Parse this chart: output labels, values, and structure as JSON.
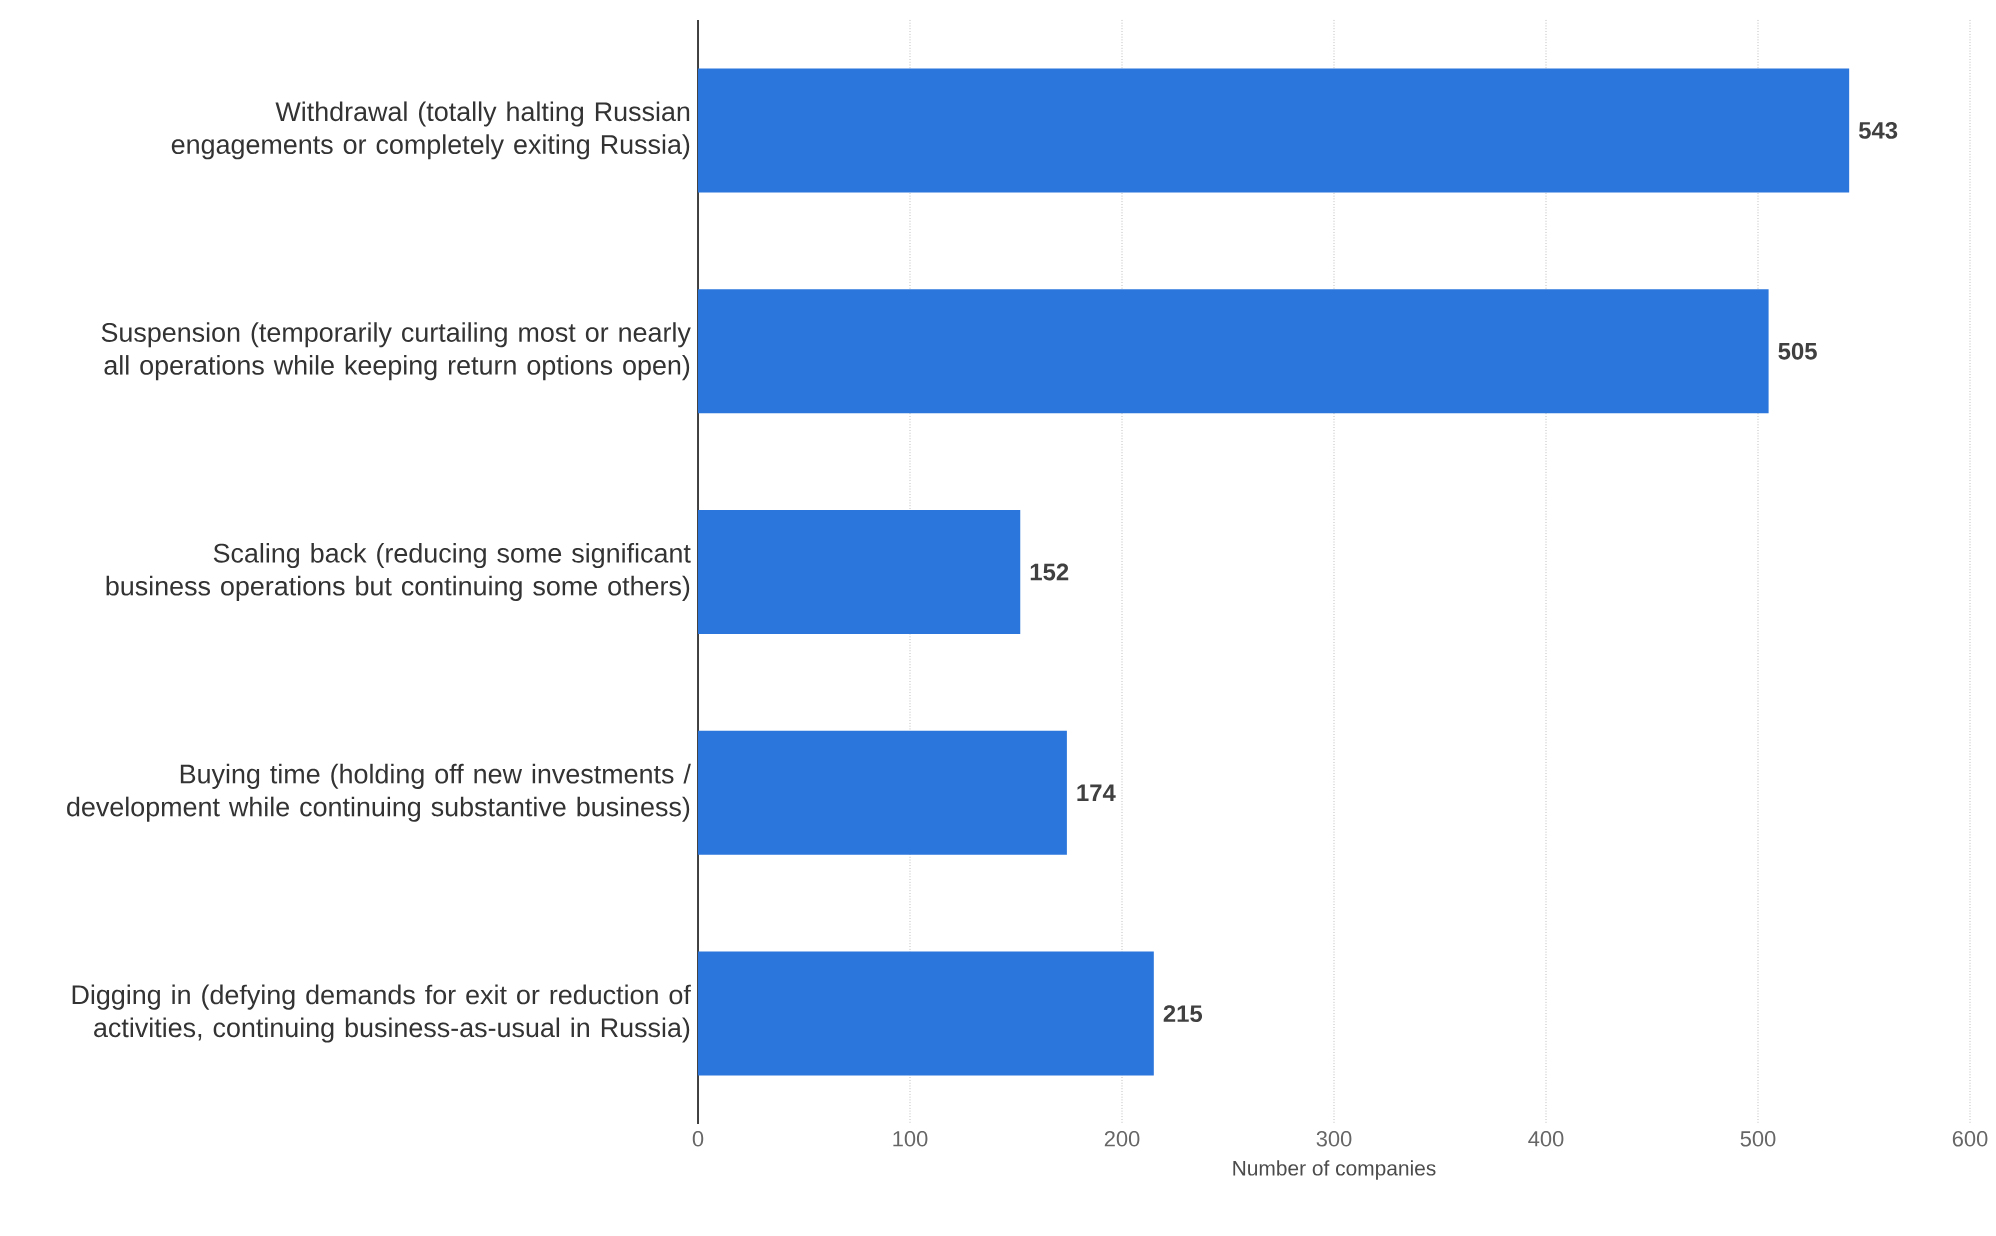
{
  "chart_data": {
    "type": "bar",
    "orientation": "horizontal",
    "categories": [
      "Withdrawal (totally halting Russian engagements or completely exiting Russia)",
      "Suspension (temporarily curtailing most or nearly all operations while keeping return options open)",
      "Scaling back (reducing some significant business operations but continuing some others)",
      "Buying time (holding off new investments / development while continuing substantive business)",
      "Digging in (defying demands for exit or reduction of activities, continuing business-as-usual in Russia)"
    ],
    "values": [
      543,
      505,
      152,
      174,
      215
    ],
    "color": "#2b76dc",
    "xlabel": "Number of companies",
    "xlim": [
      0,
      600
    ],
    "xticks": [
      0,
      100,
      200,
      300,
      400,
      500,
      600
    ],
    "grid": "x",
    "data_labels": true
  }
}
